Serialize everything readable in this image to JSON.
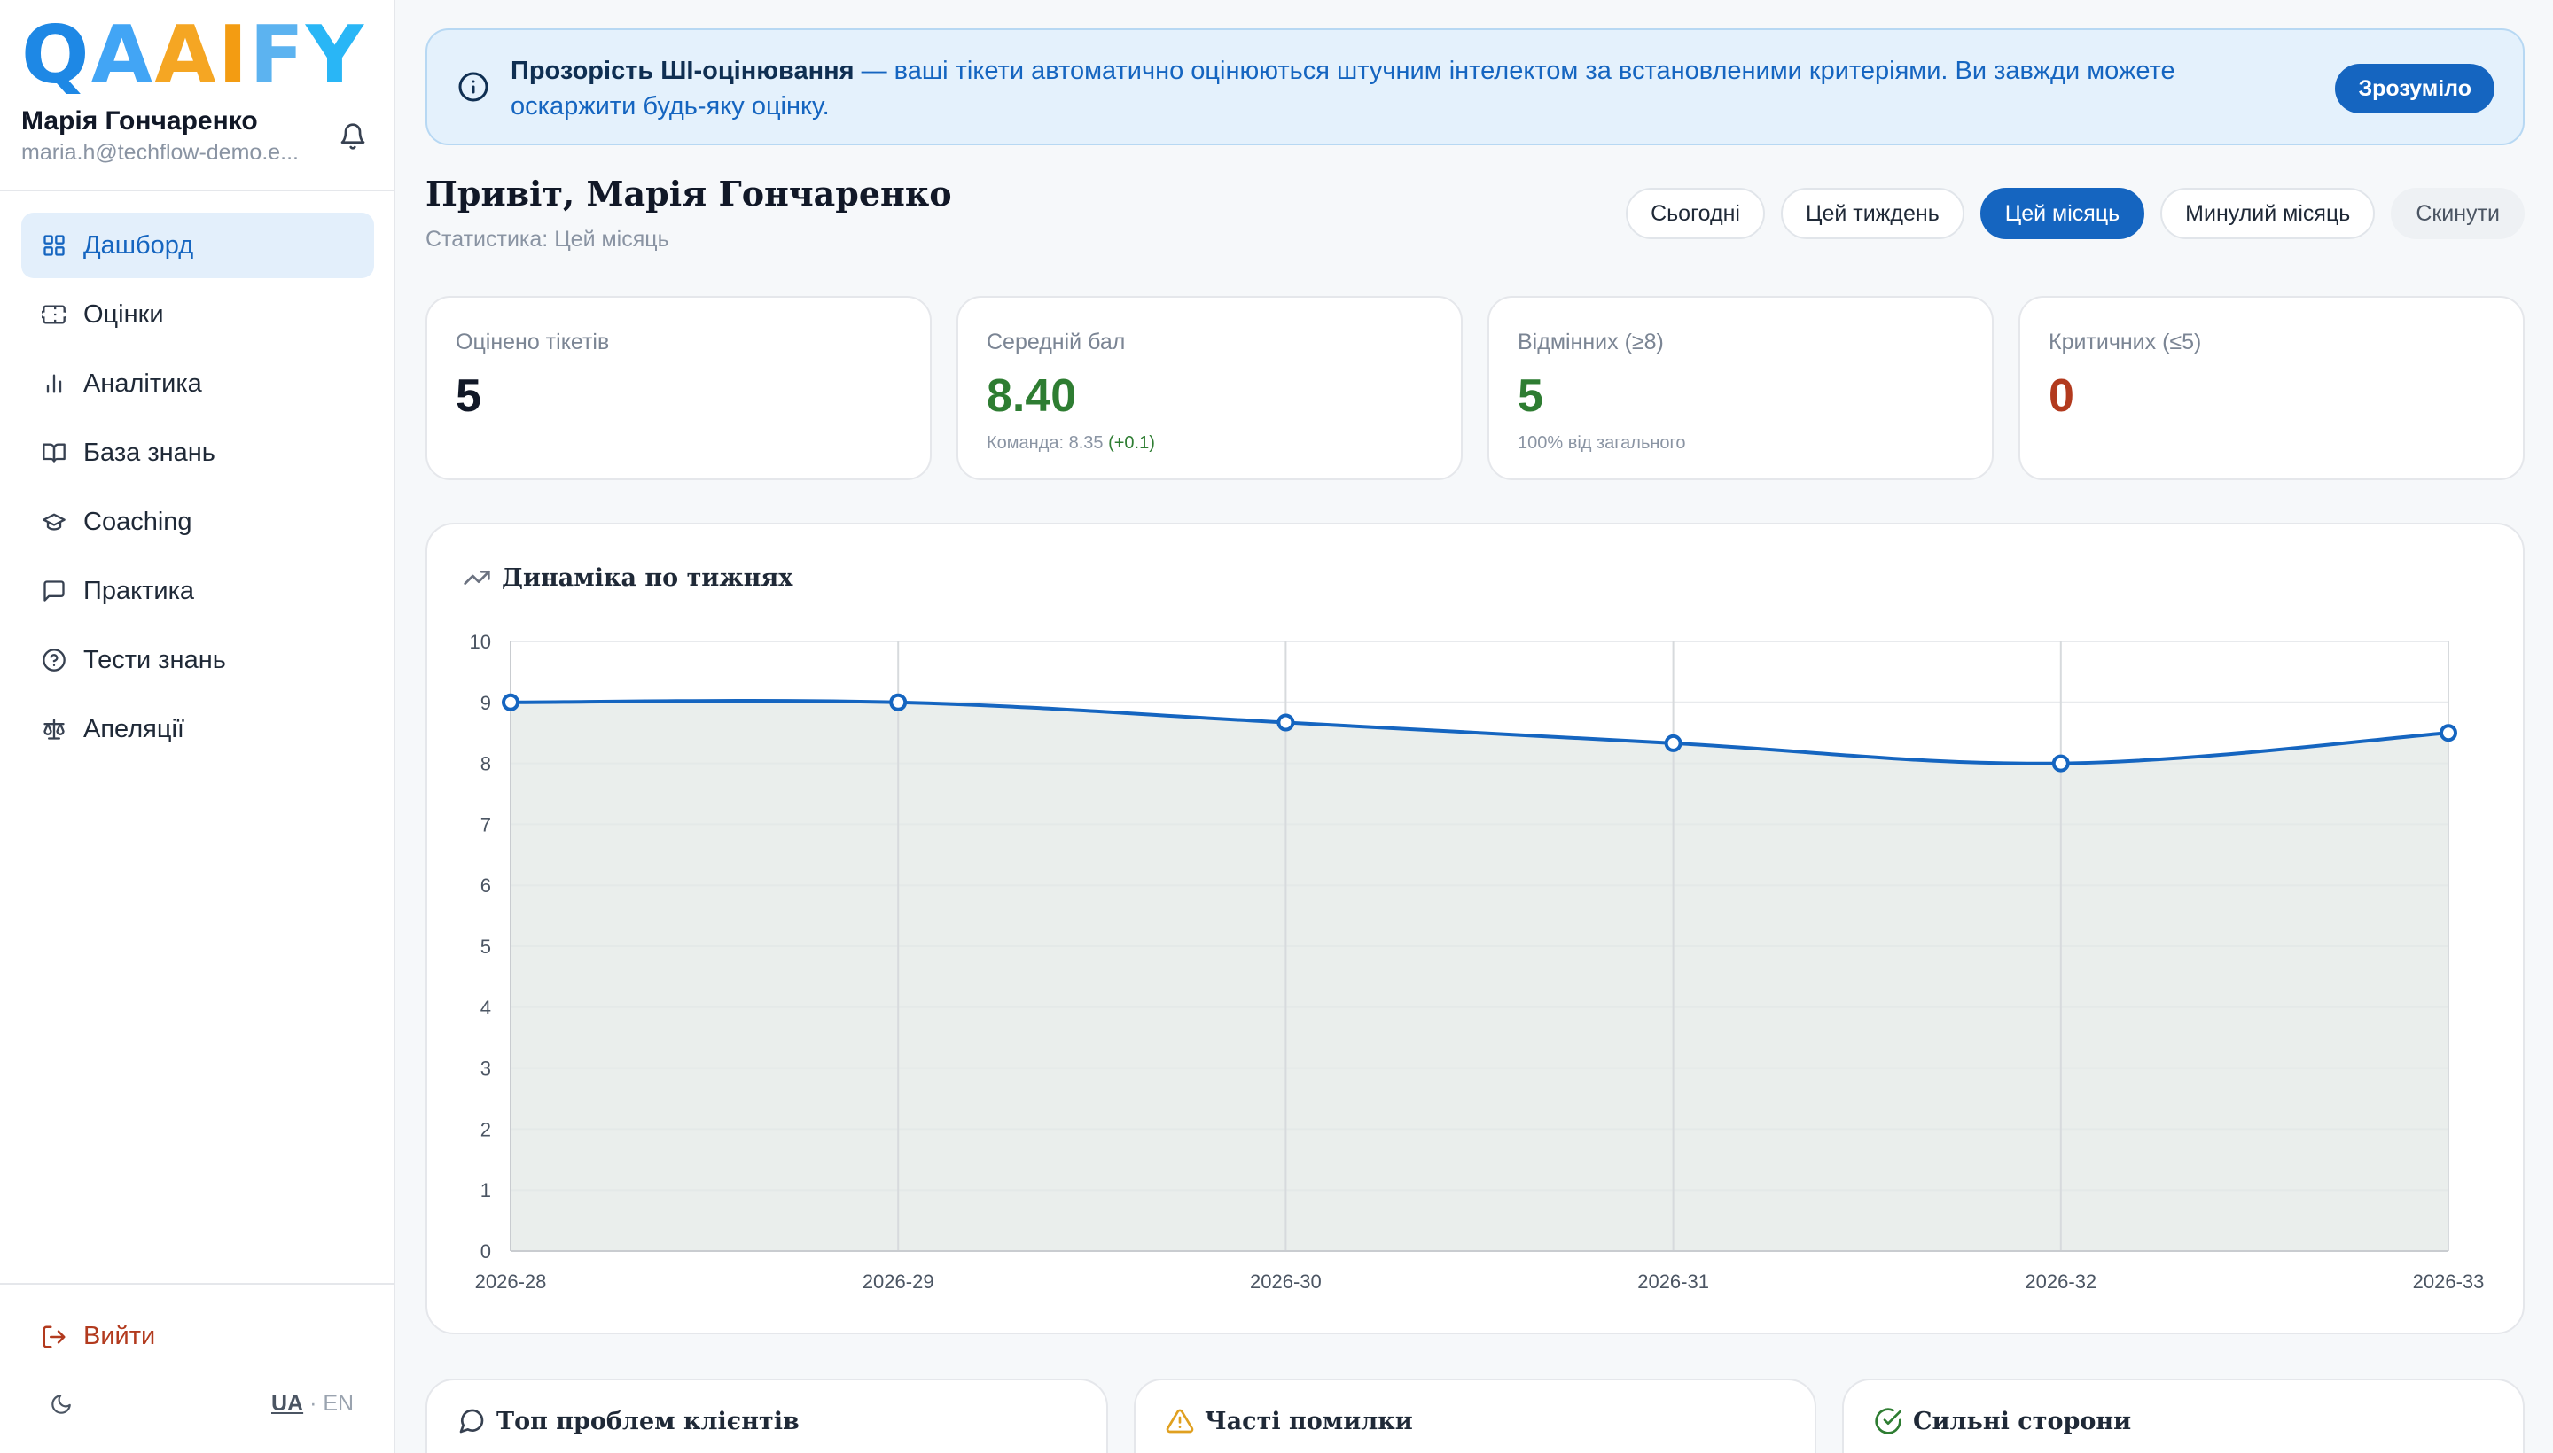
{
  "sidebar": {
    "logo": "QAAIFY",
    "user_name": "Марія Гончаренко",
    "user_email": "maria.h@techflow-demo.e...",
    "nav": [
      {
        "label": "Дашборд",
        "icon": "grid-icon",
        "active": true
      },
      {
        "label": "Оцінки",
        "icon": "ticket-icon",
        "active": false
      },
      {
        "label": "Аналітика",
        "icon": "bar-chart-icon",
        "active": false
      },
      {
        "label": "База знань",
        "icon": "book-icon",
        "active": false
      },
      {
        "label": "Coaching",
        "icon": "graduation-cap-icon",
        "active": false
      },
      {
        "label": "Практика",
        "icon": "message-square-icon",
        "active": false
      },
      {
        "label": "Тести знань",
        "icon": "help-circle-icon",
        "active": false
      },
      {
        "label": "Апеляції",
        "icon": "scale-icon",
        "active": false
      }
    ],
    "logout": "Вийти",
    "lang_ua": "UA",
    "lang_sep": "·",
    "lang_en": "EN"
  },
  "banner": {
    "title": "Прозорість ШІ-оцінювання",
    "text": " — ваші тікети автоматично оцінюються штучним інтелектом за встановленими критеріями. Ви завжди можете оскаржити будь-яку оцінку.",
    "button": "Зрозуміло"
  },
  "header": {
    "greeting": "Привіт, Марія Гончаренко",
    "subtitle": "Статистика: Цей місяць"
  },
  "filters": [
    {
      "label": "Сьогодні",
      "active": false
    },
    {
      "label": "Цей тиждень",
      "active": false
    },
    {
      "label": "Цей місяць",
      "active": true
    },
    {
      "label": "Минулий місяць",
      "active": false
    },
    {
      "label": "Скинути",
      "reset": true
    }
  ],
  "stats": [
    {
      "label": "Оцінено тікетів",
      "value": "5",
      "color": "#111827",
      "note": "",
      "delta": ""
    },
    {
      "label": "Середній бал",
      "value": "8.40",
      "color": "#2e7d32",
      "note": "Команда: 8.35 ",
      "delta": "(+0.1)"
    },
    {
      "label": "Відмінних (≥8)",
      "value": "5",
      "color": "#2e7d32",
      "note": "100% від загального",
      "delta": ""
    },
    {
      "label": "Критичних (≤5)",
      "value": "0",
      "color": "#b23a1e",
      "note": "",
      "delta": ""
    }
  ],
  "chart_title": "Динаміка по тижнях",
  "chart_data": {
    "type": "line",
    "x": [
      "2026-28",
      "2026-29",
      "2026-30",
      "2026-31",
      "2026-32",
      "2026-33"
    ],
    "series": [
      {
        "values": [
          9.0,
          9.0,
          8.67,
          8.33,
          8.0,
          8.5
        ]
      }
    ],
    "ylim": [
      0,
      10
    ],
    "yticks": [
      0,
      1,
      2,
      3,
      4,
      5,
      6,
      7,
      8,
      9,
      10
    ],
    "grid": true,
    "line_color": "#1565c0",
    "fill_color": "#e3e8e6"
  },
  "bottom_cards": [
    {
      "title": "Топ проблем клієнтів",
      "icon": "message-circle-icon"
    },
    {
      "title": "Часті помилки",
      "icon": "alert-triangle-icon"
    },
    {
      "title": "Сильні сторони",
      "icon": "check-circle-icon"
    }
  ],
  "colors": {
    "accent": "#1565c0",
    "success": "#2e7d32",
    "danger": "#b23a1e"
  }
}
